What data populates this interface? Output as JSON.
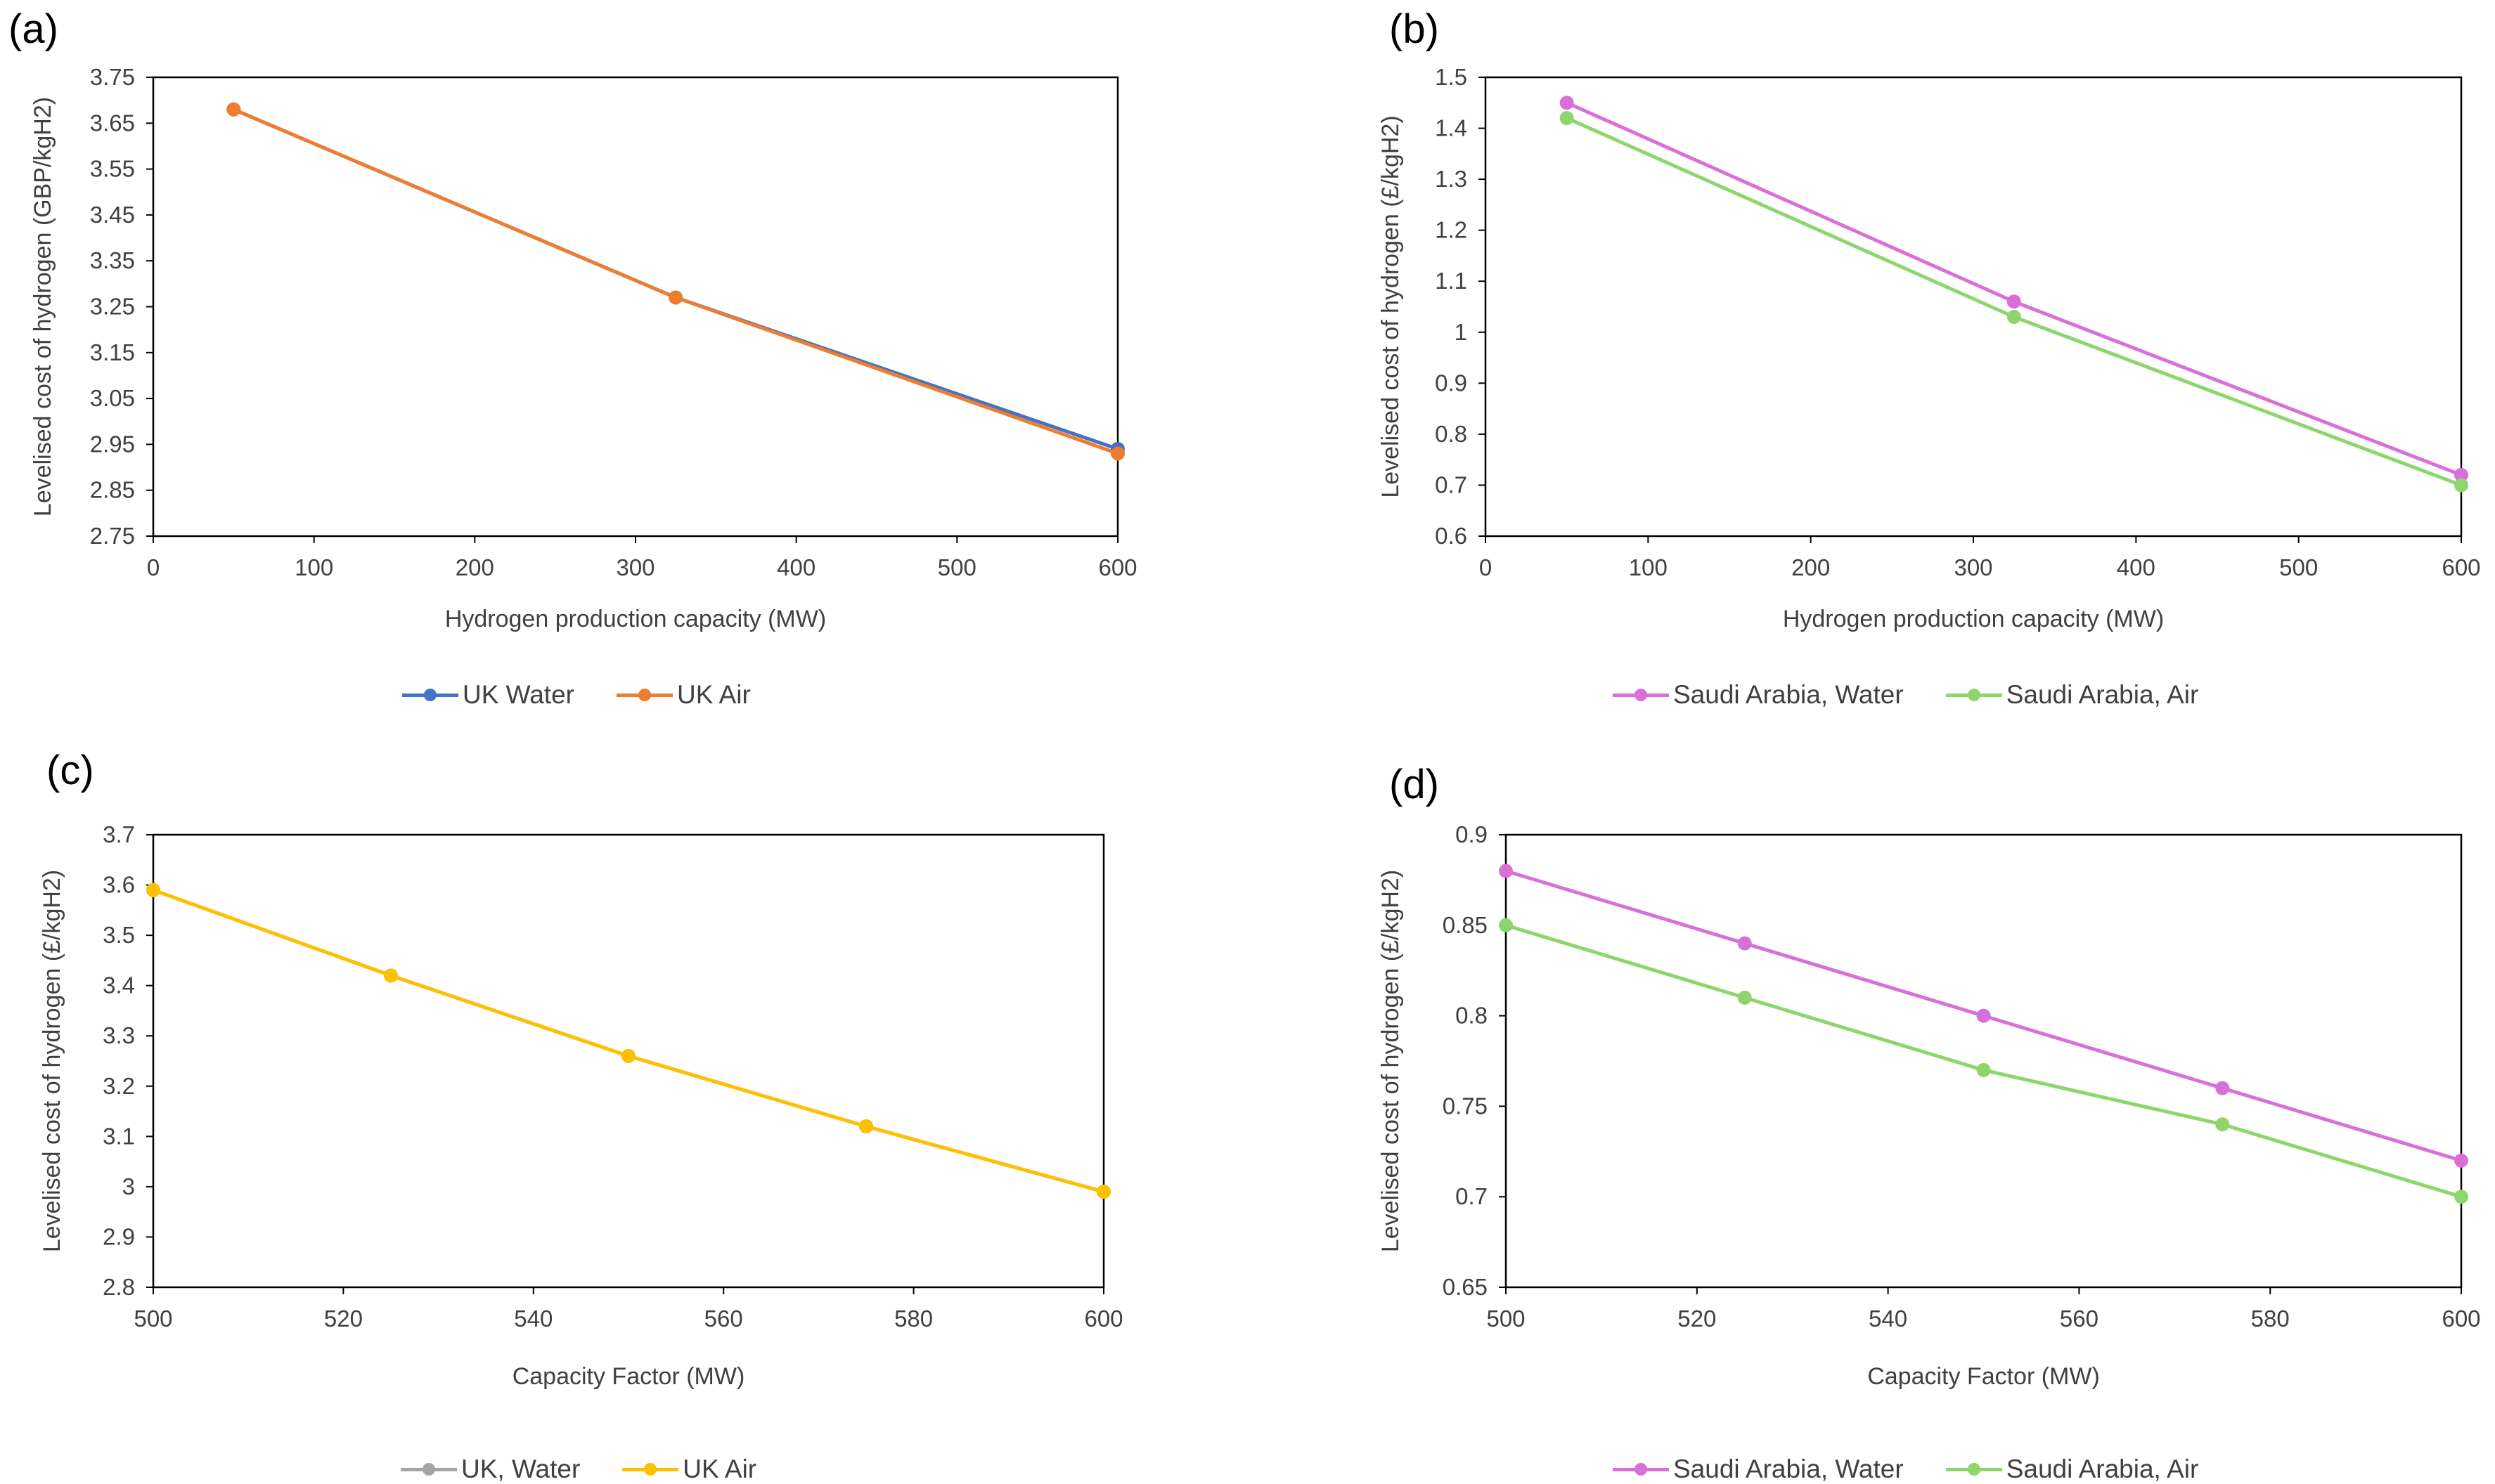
{
  "chart_data": [
    {
      "type": "line",
      "panel_label": "(a)",
      "xlabel": "Hydrogen production capacity (MW)",
      "ylabel": "Levelised cost of hydrogen (GBP/kgH2)",
      "xlim": [
        0,
        600
      ],
      "ylim": [
        2.75,
        3.75
      ],
      "xticks": [
        0,
        100,
        200,
        300,
        400,
        500,
        600
      ],
      "yticks": [
        2.75,
        2.85,
        2.95,
        3.05,
        3.15,
        3.25,
        3.35,
        3.45,
        3.55,
        3.65,
        3.75
      ],
      "x": [
        50,
        325,
        600
      ],
      "series": [
        {
          "name": "UK Water",
          "color": "#4472C4",
          "values": [
            3.68,
            3.27,
            2.94
          ]
        },
        {
          "name": "UK Air",
          "color": "#ED7D31",
          "values": [
            3.68,
            3.27,
            2.93
          ]
        }
      ],
      "grid": false,
      "legend": "bottom"
    },
    {
      "type": "line",
      "panel_label": "(b)",
      "xlabel": "Hydrogen production capacity (MW)",
      "ylabel": "Levelised cost of hydrogen (£/kgH2)",
      "xlim": [
        0,
        600
      ],
      "ylim": [
        0.6,
        1.5
      ],
      "xticks": [
        0,
        100,
        200,
        300,
        400,
        500,
        600
      ],
      "yticks": [
        0.6,
        0.7,
        0.8,
        0.9,
        1,
        1.1,
        1.2,
        1.3,
        1.4,
        1.5
      ],
      "x": [
        50,
        325,
        600
      ],
      "series": [
        {
          "name": "Saudi Arabia, Water",
          "color": "#D970D9",
          "values": [
            1.45,
            1.06,
            0.72
          ]
        },
        {
          "name": "Saudi Arabia, Air",
          "color": "#8ED66B",
          "values": [
            1.42,
            1.03,
            0.7
          ]
        }
      ],
      "grid": false,
      "legend": "bottom"
    },
    {
      "type": "line",
      "panel_label": "(c)",
      "xlabel": "Capacity Factor (MW)",
      "ylabel": "Levelised cost of hydrogen (£/kgH2)",
      "xlim": [
        500,
        600
      ],
      "ylim": [
        2.8,
        3.7
      ],
      "xticks": [
        500,
        520,
        540,
        560,
        580,
        600
      ],
      "yticks": [
        2.8,
        2.9,
        3,
        3.1,
        3.2,
        3.3,
        3.4,
        3.5,
        3.6,
        3.7
      ],
      "x": [
        500,
        525,
        550,
        575,
        600
      ],
      "series": [
        {
          "name": "UK, Water",
          "color": "#A5A5A5",
          "values": [
            3.59,
            3.42,
            3.26,
            3.12,
            2.99
          ]
        },
        {
          "name": "UK Air",
          "color": "#FFC000",
          "values": [
            3.59,
            3.42,
            3.26,
            3.12,
            2.99
          ]
        }
      ],
      "grid": false,
      "legend": "bottom"
    },
    {
      "type": "line",
      "panel_label": "(d)",
      "xlabel": "Capacity Factor (MW)",
      "ylabel": "Levelised cost of hydrogen (£/kgH2)",
      "xlim": [
        500,
        600
      ],
      "ylim": [
        0.65,
        0.9
      ],
      "xticks": [
        500,
        520,
        540,
        560,
        580,
        600
      ],
      "yticks": [
        0.65,
        0.7,
        0.75,
        0.8,
        0.85,
        0.9
      ],
      "x": [
        500,
        525,
        550,
        575,
        600
      ],
      "series": [
        {
          "name": "Saudi Arabia, Water",
          "color": "#D970D9",
          "values": [
            0.88,
            0.84,
            0.8,
            0.76,
            0.72
          ]
        },
        {
          "name": "Saudi Arabia, Air",
          "color": "#8ED66B",
          "values": [
            0.85,
            0.81,
            0.77,
            0.74,
            0.7
          ]
        }
      ],
      "grid": false,
      "legend": "bottom"
    }
  ]
}
